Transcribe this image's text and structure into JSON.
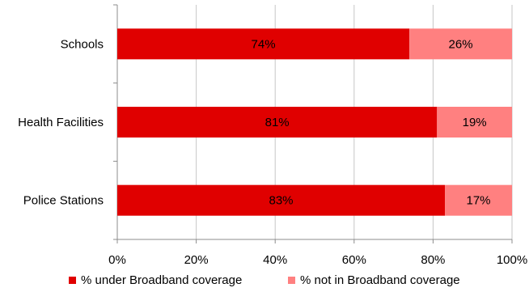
{
  "chart_data": {
    "type": "bar",
    "orientation": "horizontal",
    "stacked": true,
    "categories": [
      "Schools",
      "Health Facilities",
      "Police Stations"
    ],
    "series": [
      {
        "name": "% under Broadband coverage",
        "values": [
          74,
          81,
          83
        ],
        "labels": [
          "74%",
          "81%",
          "83%"
        ],
        "color": "#e00000"
      },
      {
        "name": "% not in Broadband coverage",
        "values": [
          26,
          19,
          17
        ],
        "labels": [
          "26%",
          "19%",
          "17%"
        ],
        "color": "#ff8080"
      }
    ],
    "x_ticks": [
      "0%",
      "20%",
      "40%",
      "60%",
      "80%",
      "100%"
    ],
    "xlim": [
      0,
      100
    ],
    "grid": "vertical",
    "legend": "bottom"
  }
}
